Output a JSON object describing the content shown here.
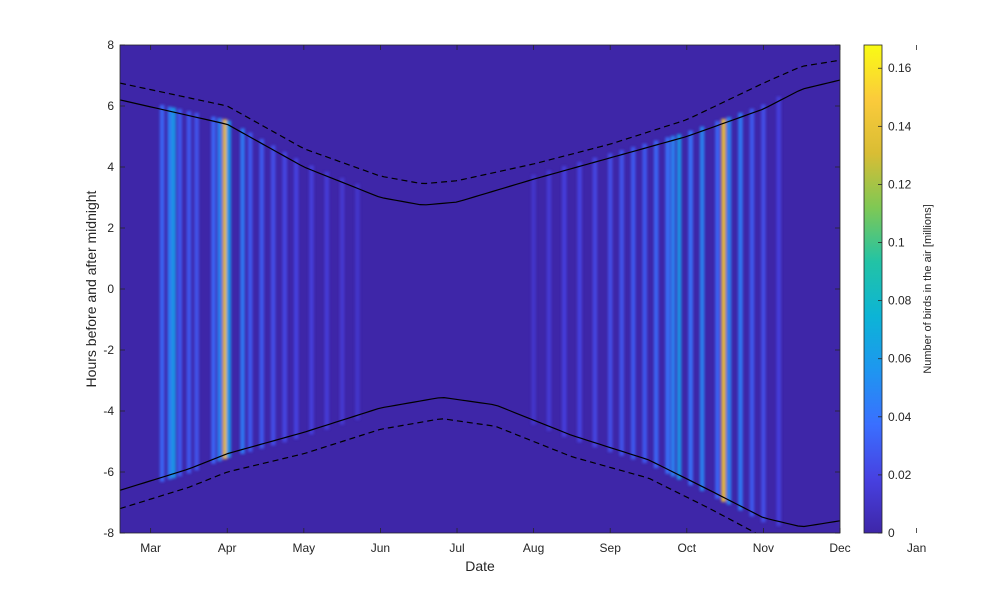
{
  "chart_data": {
    "type": "heatmap",
    "xlabel": "Date",
    "ylabel": "Hours before and after midnight",
    "colorbar_label": "Number of birds in the air [millions]",
    "x_ticks": [
      "Mar",
      "Apr",
      "May",
      "Jun",
      "Jul",
      "Aug",
      "Sep",
      "Oct",
      "Nov",
      "Dec",
      "Jan"
    ],
    "x_range_months": [
      2.6,
      12.0
    ],
    "y_ticks": [
      8,
      6,
      4,
      2,
      0,
      -2,
      -4,
      -6,
      -8
    ],
    "ylim": [
      -8,
      8
    ],
    "colorbar_ticks": [
      0,
      0.02,
      0.04,
      0.06,
      0.08,
      0.1,
      0.12,
      0.14,
      0.16
    ],
    "clim": [
      0,
      0.168
    ],
    "colormap": [
      "#3e26a8",
      "#4741e1",
      "#3a6fff",
      "#1e96f0",
      "#0cb4d6",
      "#22c3a5",
      "#7fc854",
      "#d9bd34",
      "#fbcb3b",
      "#f9fb14"
    ],
    "background_color": "#3e26a8",
    "curves": {
      "sunset_solid": {
        "x_months": [
          2.6,
          4.0,
          5.0,
          6.0,
          6.55,
          7.0,
          8.0,
          9.0,
          10.0,
          11.0,
          11.5,
          12.0
        ],
        "y": [
          6.2,
          5.4,
          4.0,
          3.0,
          2.75,
          2.85,
          3.6,
          4.3,
          5.0,
          5.9,
          6.55,
          6.85
        ]
      },
      "sunset_dashed": {
        "x_months": [
          2.6,
          4.0,
          5.0,
          6.0,
          6.55,
          7.0,
          8.0,
          9.0,
          10.0,
          11.0,
          11.5,
          12.0
        ],
        "y": [
          6.75,
          6.0,
          4.6,
          3.7,
          3.45,
          3.55,
          4.1,
          4.75,
          5.55,
          6.75,
          7.3,
          7.5
        ]
      },
      "sunrise_solid": {
        "x_months": [
          2.6,
          3.5,
          4.0,
          5.0,
          6.0,
          6.8,
          7.5,
          8.5,
          9.5,
          10.3,
          11.0,
          11.5,
          12.0
        ],
        "y": [
          -6.6,
          -5.9,
          -5.4,
          -4.7,
          -3.9,
          -3.55,
          -3.8,
          -4.8,
          -5.6,
          -6.6,
          -7.5,
          -7.8,
          -7.6
        ]
      },
      "sunrise_dashed": {
        "x_months": [
          2.6,
          3.5,
          4.0,
          5.0,
          6.0,
          6.8,
          7.5,
          8.5,
          9.5,
          10.3,
          10.9
        ],
        "y": [
          -7.2,
          -6.5,
          -6.0,
          -5.4,
          -4.6,
          -4.25,
          -4.5,
          -5.5,
          -6.2,
          -7.2,
          -8.0
        ]
      }
    },
    "migration_columns": [
      {
        "x_month": 3.15,
        "value": 0.035
      },
      {
        "x_month": 3.25,
        "value": 0.045
      },
      {
        "x_month": 3.3,
        "value": 0.06
      },
      {
        "x_month": 3.38,
        "value": 0.03
      },
      {
        "x_month": 3.5,
        "value": 0.03
      },
      {
        "x_month": 3.6,
        "value": 0.028
      },
      {
        "x_month": 3.82,
        "value": 0.035
      },
      {
        "x_month": 3.9,
        "value": 0.05
      },
      {
        "x_month": 3.97,
        "value": 0.145
      },
      {
        "x_month": 4.02,
        "value": 0.06
      },
      {
        "x_month": 4.2,
        "value": 0.045
      },
      {
        "x_month": 4.3,
        "value": 0.03
      },
      {
        "x_month": 4.45,
        "value": 0.03
      },
      {
        "x_month": 4.6,
        "value": 0.025
      },
      {
        "x_month": 4.75,
        "value": 0.022
      },
      {
        "x_month": 4.9,
        "value": 0.02
      },
      {
        "x_month": 5.1,
        "value": 0.018
      },
      {
        "x_month": 5.3,
        "value": 0.016
      },
      {
        "x_month": 5.5,
        "value": 0.014
      },
      {
        "x_month": 5.7,
        "value": 0.012
      },
      {
        "x_month": 8.0,
        "value": 0.012
      },
      {
        "x_month": 8.2,
        "value": 0.015
      },
      {
        "x_month": 8.4,
        "value": 0.018
      },
      {
        "x_month": 8.6,
        "value": 0.02
      },
      {
        "x_month": 8.8,
        "value": 0.022
      },
      {
        "x_month": 9.0,
        "value": 0.025
      },
      {
        "x_month": 9.15,
        "value": 0.028
      },
      {
        "x_month": 9.3,
        "value": 0.03
      },
      {
        "x_month": 9.45,
        "value": 0.03
      },
      {
        "x_month": 9.6,
        "value": 0.035
      },
      {
        "x_month": 9.75,
        "value": 0.04
      },
      {
        "x_month": 9.82,
        "value": 0.05
      },
      {
        "x_month": 9.9,
        "value": 0.06
      },
      {
        "x_month": 10.05,
        "value": 0.04
      },
      {
        "x_month": 10.2,
        "value": 0.05
      },
      {
        "x_month": 10.4,
        "value": 0.035
      },
      {
        "x_month": 10.48,
        "value": 0.145
      },
      {
        "x_month": 10.55,
        "value": 0.05
      },
      {
        "x_month": 10.7,
        "value": 0.045
      },
      {
        "x_month": 10.85,
        "value": 0.03
      },
      {
        "x_month": 11.0,
        "value": 0.025
      },
      {
        "x_month": 11.2,
        "value": 0.018
      }
    ]
  }
}
